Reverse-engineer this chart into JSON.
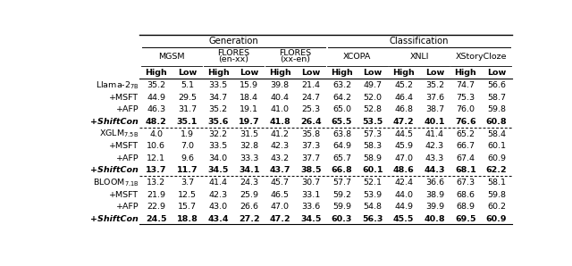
{
  "title_generation": "Generation",
  "title_classification": "Classification",
  "group_labels": [
    "MGSM",
    "FLORES\n(en-xx)",
    "FLORES\n(xx-en)",
    "XCOPA",
    "XNLI",
    "XStoryCloze"
  ],
  "row_groups": [
    {
      "rows": [
        {
          "label": "Llama-2$_{7B}$",
          "indent": false,
          "bold": false,
          "italic": false,
          "values": [
            35.2,
            5.1,
            33.5,
            15.9,
            39.8,
            21.4,
            63.2,
            49.7,
            45.2,
            35.2,
            74.7,
            56.6
          ]
        },
        {
          "label": "+MSFT",
          "indent": true,
          "bold": false,
          "italic": false,
          "values": [
            44.9,
            29.5,
            34.7,
            18.4,
            40.4,
            24.7,
            64.2,
            52.0,
            46.4,
            37.6,
            75.3,
            58.7
          ]
        },
        {
          "label": "+AFP",
          "indent": true,
          "bold": false,
          "italic": false,
          "values": [
            46.3,
            31.7,
            35.2,
            19.1,
            41.0,
            25.3,
            65.0,
            52.8,
            46.8,
            38.7,
            76.0,
            59.8
          ]
        },
        {
          "label": "+ShiftCon",
          "indent": true,
          "bold": true,
          "italic": true,
          "values": [
            48.2,
            35.1,
            35.6,
            19.7,
            41.8,
            26.4,
            65.5,
            53.5,
            47.2,
            40.1,
            76.6,
            60.8
          ]
        }
      ]
    },
    {
      "rows": [
        {
          "label": "XGLM$_{7.5B}$",
          "indent": false,
          "bold": false,
          "italic": false,
          "values": [
            4.0,
            1.9,
            32.2,
            31.5,
            41.2,
            35.8,
            63.8,
            57.3,
            44.5,
            41.4,
            65.2,
            58.4
          ]
        },
        {
          "label": "+MSFT",
          "indent": true,
          "bold": false,
          "italic": false,
          "values": [
            10.6,
            7.0,
            33.5,
            32.8,
            42.3,
            37.3,
            64.9,
            58.3,
            45.9,
            42.3,
            66.7,
            60.1
          ]
        },
        {
          "label": "+AFP",
          "indent": true,
          "bold": false,
          "italic": false,
          "values": [
            12.1,
            9.6,
            34.0,
            33.3,
            43.2,
            37.7,
            65.7,
            58.9,
            47.0,
            43.3,
            67.4,
            60.9
          ]
        },
        {
          "label": "+ShiftCon",
          "indent": true,
          "bold": true,
          "italic": true,
          "values": [
            13.7,
            11.7,
            34.5,
            34.1,
            43.7,
            38.5,
            66.8,
            60.1,
            48.6,
            44.3,
            68.1,
            62.2
          ]
        }
      ]
    },
    {
      "rows": [
        {
          "label": "BLOOM$_{7.1B}$",
          "indent": false,
          "bold": false,
          "italic": false,
          "values": [
            13.2,
            3.7,
            41.4,
            24.3,
            45.7,
            30.7,
            57.7,
            52.1,
            42.4,
            36.6,
            67.3,
            58.1
          ]
        },
        {
          "label": "+MSFT",
          "indent": true,
          "bold": false,
          "italic": false,
          "values": [
            21.9,
            12.5,
            42.3,
            25.9,
            46.5,
            33.1,
            59.2,
            53.9,
            44.0,
            38.9,
            68.6,
            59.8
          ]
        },
        {
          "label": "+AFP",
          "indent": true,
          "bold": false,
          "italic": false,
          "values": [
            22.9,
            15.7,
            43.0,
            26.6,
            47.0,
            33.6,
            59.9,
            54.8,
            44.9,
            39.9,
            68.9,
            60.2
          ]
        },
        {
          "label": "+ShiftCon",
          "indent": true,
          "bold": true,
          "italic": true,
          "values": [
            24.5,
            18.8,
            43.4,
            27.2,
            47.2,
            34.5,
            60.3,
            56.3,
            45.5,
            40.8,
            69.5,
            60.9
          ]
        }
      ]
    }
  ]
}
